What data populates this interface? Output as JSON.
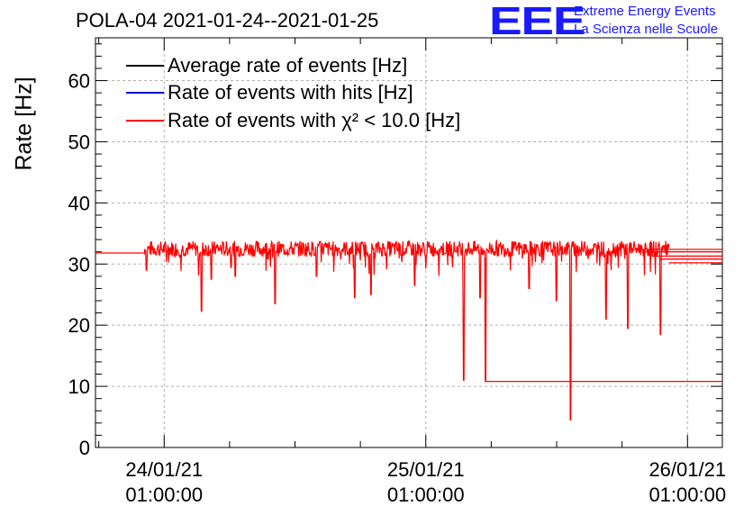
{
  "chart_data": {
    "type": "line",
    "title": "POLA-04 2021-01-24--2021-01-25",
    "ylabel": "Rate [Hz]",
    "xlabel": "",
    "ylim": [
      0,
      67
    ],
    "yticks": [
      0,
      10,
      20,
      30,
      40,
      50,
      60
    ],
    "x_range_hours": [
      -6.3,
      51.2
    ],
    "xticks": [
      {
        "hours": 0,
        "date": "24/01/21",
        "time": "01:00:00"
      },
      {
        "hours": 24,
        "date": "25/01/21",
        "time": "01:00:00"
      },
      {
        "hours": 48,
        "date": "26/01/21",
        "time": "01:00:00"
      }
    ],
    "grid": true,
    "legend_position": "top-left",
    "series": [
      {
        "name": "Average rate of events [Hz]",
        "color": "#000000"
      },
      {
        "name": "Rate of events with hits [Hz]",
        "color": "#0000cc"
      },
      {
        "name": "Rate of events with χ² < 10.0 [Hz]",
        "color": "#ff0000",
        "baseline_rate": 32.5,
        "flat_before": {
          "hours": [
            -6.3,
            -1.8
          ],
          "value": 31.8
        },
        "dips": [
          {
            "hours": -1.6,
            "value": 29
          },
          {
            "hours": 3.4,
            "value": 22.3
          },
          {
            "hours": 4.3,
            "value": 27.5
          },
          {
            "hours": 6.5,
            "value": 28
          },
          {
            "hours": 10.2,
            "value": 23.5
          },
          {
            "hours": 14,
            "value": 28
          },
          {
            "hours": 17.5,
            "value": 24.5
          },
          {
            "hours": 19,
            "value": 25
          },
          {
            "hours": 23,
            "value": 26.5
          },
          {
            "hours": 27.5,
            "value": 11
          },
          {
            "hours": 29,
            "value": 24.5
          },
          {
            "hours": 29.5,
            "value": 10.8
          },
          {
            "hours": 33.5,
            "value": 26
          },
          {
            "hours": 36,
            "value": 24
          },
          {
            "hours": 37.3,
            "value": 4.5
          },
          {
            "hours": 40.5,
            "value": 21
          },
          {
            "hours": 42.5,
            "value": 19.5
          },
          {
            "hours": 45.5,
            "value": 18.5
          }
        ],
        "plateau_after": {
          "hours": [
            29.5,
            51.2
          ],
          "value": 10.8
        },
        "tail_lines": [
          30.2,
          30.8,
          31.3,
          32.0,
          32.4
        ]
      }
    ]
  },
  "logo": {
    "mark": "EEE",
    "line1": "Extreme Energy Events",
    "line2": "La Scienza nelle Scuole"
  }
}
